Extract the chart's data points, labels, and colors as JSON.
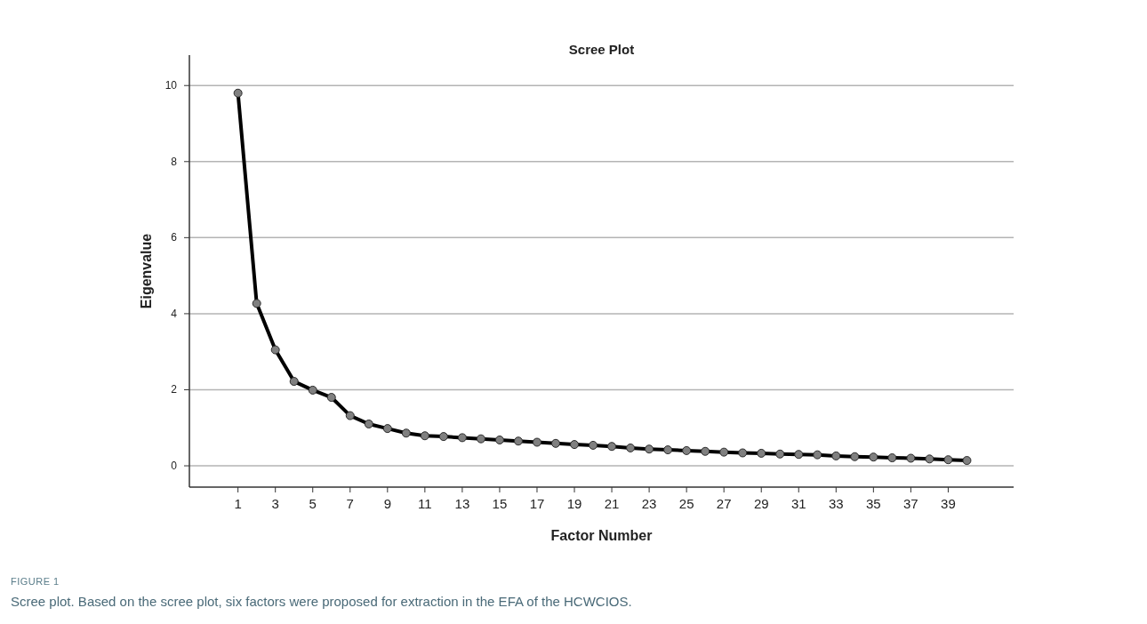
{
  "chart_data": {
    "type": "line",
    "title": "Scree Plot",
    "xlabel": "Factor Number",
    "ylabel": "Eigenvalue",
    "annotations": [
      "FIGURE 1",
      "Scree plot. Based on the scree plot, six factors were proposed for extraction in the EFA of the HCWCIOS."
    ],
    "x": [
      1,
      2,
      3,
      4,
      5,
      6,
      7,
      8,
      9,
      10,
      11,
      12,
      13,
      14,
      15,
      16,
      17,
      18,
      19,
      20,
      21,
      22,
      23,
      24,
      25,
      26,
      27,
      28,
      29,
      30,
      31,
      32,
      33,
      34,
      35,
      36,
      37,
      38,
      39,
      40
    ],
    "series": [
      {
        "color": "#000000",
        "values": [
          9.8,
          4.27,
          3.05,
          2.22,
          1.99,
          1.8,
          1.32,
          1.1,
          0.98,
          0.86,
          0.79,
          0.77,
          0.74,
          0.71,
          0.68,
          0.65,
          0.62,
          0.59,
          0.56,
          0.54,
          0.51,
          0.47,
          0.44,
          0.42,
          0.4,
          0.38,
          0.36,
          0.34,
          0.33,
          0.31,
          0.3,
          0.29,
          0.26,
          0.24,
          0.23,
          0.21,
          0.2,
          0.18,
          0.16,
          0.14
        ]
      }
    ],
    "xlim": [
      -1.6,
      42.5
    ],
    "xticks": [
      1,
      3,
      5,
      7,
      9,
      11,
      13,
      15,
      17,
      19,
      21,
      23,
      25,
      27,
      29,
      31,
      33,
      35,
      37,
      39
    ],
    "ylim": [
      -0.56,
      10.8
    ],
    "yticks": [
      0,
      2,
      4,
      6,
      8,
      10
    ],
    "grid": "y",
    "marker": "circle",
    "line_style": "solid"
  }
}
